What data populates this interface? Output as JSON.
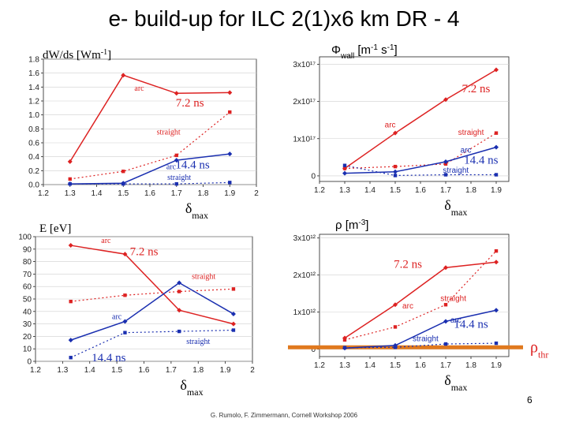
{
  "page": {
    "title": "e- build-up for ILC 2(1)x6 km DR - 4",
    "page_number": "6",
    "footer": "G. Rumolo, F. Zimmermann, Cornell Workshop 2006"
  },
  "colors": {
    "red": "#dd2222",
    "blue": "#1a2fb0",
    "threshold": "#e0791e"
  },
  "chart_data": [
    {
      "id": "power",
      "type": "line",
      "ylabel": "dW/ds [Wm-1]",
      "xlabel": "δmax",
      "xlim": [
        1.2,
        2.0
      ],
      "ylim": [
        0,
        1.8
      ],
      "xticks": [
        1.2,
        1.3,
        1.4,
        1.5,
        1.6,
        1.7,
        1.8,
        1.9,
        2.0
      ],
      "xtick_labels": [
        "1.2",
        "1.3",
        "1.4",
        "1.5",
        "1.6",
        "1.7",
        "1.8",
        "1.9",
        "2"
      ],
      "yticks": [
        0,
        0.2,
        0.4,
        0.6,
        0.8,
        1.0,
        1.2,
        1.4,
        1.6,
        1.8
      ],
      "ytick_labels": [
        "0.0",
        "0.2",
        "0.4",
        "0.6",
        "0.8",
        "1.0",
        "1.2",
        "1.4",
        "1.6",
        "1.8"
      ],
      "series": [
        {
          "name": "7.2 ns arc",
          "color": "red",
          "style": "solid",
          "x": [
            1.3,
            1.5,
            1.7,
            1.9
          ],
          "y": [
            0.33,
            1.57,
            1.31,
            1.32
          ]
        },
        {
          "name": "7.2 ns straight",
          "color": "red",
          "style": "dotted",
          "x": [
            1.3,
            1.5,
            1.7,
            1.9
          ],
          "y": [
            0.08,
            0.19,
            0.42,
            1.04
          ]
        },
        {
          "name": "14.4 ns arc",
          "color": "blue",
          "style": "solid",
          "x": [
            1.3,
            1.5,
            1.7,
            1.9
          ],
          "y": [
            0.01,
            0.02,
            0.35,
            0.44
          ]
        },
        {
          "name": "14.4 ns straight",
          "color": "blue",
          "style": "dotted",
          "x": [
            1.3,
            1.5,
            1.7,
            1.9
          ],
          "y": [
            0.01,
            0.01,
            0.01,
            0.03
          ]
        }
      ],
      "annotations": [
        {
          "text": "arc",
          "color": "red",
          "size": "small",
          "at": [
            1.56,
            1.35
          ]
        },
        {
          "text": "7.2 ns",
          "color": "red",
          "size": "big",
          "at": [
            1.75,
            1.12
          ]
        },
        {
          "text": "straight",
          "color": "red",
          "size": "small",
          "at": [
            1.67,
            0.72
          ]
        },
        {
          "text": "arc",
          "color": "blue",
          "size": "small",
          "at": [
            1.68,
            0.22
          ]
        },
        {
          "text": "14.4 ns",
          "color": "blue",
          "size": "big",
          "at": [
            1.76,
            0.23
          ]
        },
        {
          "text": "straight",
          "color": "blue",
          "size": "small",
          "at": [
            1.71,
            0.07
          ]
        }
      ]
    },
    {
      "id": "flux",
      "type": "line",
      "ylabel": "Φwall [m-1 s-1]",
      "xlabel": "δmax",
      "xlim": [
        1.2,
        1.95
      ],
      "ylim": [
        -0.15,
        3.2
      ],
      "xticks": [
        1.2,
        1.3,
        1.4,
        1.5,
        1.6,
        1.7,
        1.8,
        1.9
      ],
      "xtick_labels": [
        "1.2",
        "1.3",
        "1.4",
        "1.5",
        "1.6",
        "1.7",
        "1.8",
        "1.9"
      ],
      "yticks": [
        0,
        1,
        2,
        3
      ],
      "ytick_labels": [
        "0",
        "1x10¹⁷",
        "2x10¹⁷",
        "3x10¹⁷"
      ],
      "series": [
        {
          "name": "7.2 ns arc",
          "color": "red",
          "style": "solid",
          "x": [
            1.3,
            1.5,
            1.7,
            1.9
          ],
          "y": [
            0.2,
            1.15,
            2.05,
            2.85
          ]
        },
        {
          "name": "7.2 ns straight",
          "color": "red",
          "style": "dotted",
          "x": [
            1.3,
            1.5,
            1.7,
            1.9
          ],
          "y": [
            0.2,
            0.25,
            0.32,
            1.15
          ]
        },
        {
          "name": "14.4 ns arc",
          "color": "blue",
          "style": "solid",
          "x": [
            1.3,
            1.5,
            1.7,
            1.9
          ],
          "y": [
            0.07,
            0.11,
            0.38,
            0.77
          ]
        },
        {
          "name": "14.4 ns straight",
          "color": "blue",
          "style": "dotted",
          "x": [
            1.3,
            1.5,
            1.7,
            1.9
          ],
          "y": [
            0.28,
            0.01,
            0.03,
            0.03
          ]
        }
      ],
      "annotations": [
        {
          "text": "7.2 ns",
          "color": "red",
          "size": "big",
          "at": [
            1.82,
            2.25
          ]
        },
        {
          "text": "arc",
          "color": "red",
          "size": "small",
          "at": [
            1.48,
            1.3
          ]
        },
        {
          "text": "straight",
          "color": "red",
          "size": "small",
          "at": [
            1.8,
            1.1
          ]
        },
        {
          "text": "arc",
          "color": "blue",
          "size": "small",
          "at": [
            1.78,
            0.62
          ]
        },
        {
          "text": "14.4 ns",
          "color": "blue",
          "size": "big",
          "at": [
            1.84,
            0.33
          ]
        },
        {
          "text": "straight",
          "color": "blue",
          "size": "small",
          "at": [
            1.74,
            0.08
          ]
        }
      ]
    },
    {
      "id": "energy",
      "type": "line",
      "ylabel": "E [eV]",
      "xlabel": "δmax",
      "xlim": [
        1.2,
        2.0
      ],
      "ylim": [
        0,
        100
      ],
      "xticks": [
        1.2,
        1.3,
        1.4,
        1.5,
        1.6,
        1.7,
        1.8,
        1.9,
        2.0
      ],
      "xtick_labels": [
        "1.2",
        "1.3",
        "1.4",
        "1.5",
        "1.6",
        "1.7",
        "1.8",
        "1.9",
        "2"
      ],
      "yticks": [
        0,
        10,
        20,
        30,
        40,
        50,
        60,
        70,
        80,
        90,
        100
      ],
      "ytick_labels": [
        "0",
        "10",
        "20",
        "30",
        "40",
        "50",
        "60",
        "70",
        "80",
        "90",
        "100"
      ],
      "series": [
        {
          "name": "7.2 ns arc",
          "color": "red",
          "style": "solid",
          "x": [
            1.33,
            1.53,
            1.73,
            1.93
          ],
          "y": [
            93,
            86,
            41,
            30
          ]
        },
        {
          "name": "7.2 ns straight",
          "color": "red",
          "style": "dotted",
          "x": [
            1.33,
            1.53,
            1.73,
            1.93
          ],
          "y": [
            48,
            53,
            56,
            58
          ]
        },
        {
          "name": "14.4 ns arc",
          "color": "blue",
          "style": "solid",
          "x": [
            1.33,
            1.53,
            1.73,
            1.93
          ],
          "y": [
            17,
            32,
            63,
            38
          ]
        },
        {
          "name": "14.4 ns straight",
          "color": "blue",
          "style": "dotted",
          "x": [
            1.33,
            1.53,
            1.73,
            1.93
          ],
          "y": [
            3,
            23,
            24,
            25
          ]
        }
      ],
      "annotations": [
        {
          "text": "arc",
          "color": "red",
          "size": "small",
          "at": [
            1.46,
            95
          ]
        },
        {
          "text": "7.2 ns",
          "color": "red",
          "size": "big",
          "at": [
            1.6,
            85
          ]
        },
        {
          "text": "straight",
          "color": "red",
          "size": "small",
          "at": [
            1.82,
            66
          ]
        },
        {
          "text": "arc",
          "color": "blue",
          "size": "small",
          "at": [
            1.5,
            34
          ]
        },
        {
          "text": "straight",
          "color": "blue",
          "size": "small",
          "at": [
            1.8,
            14
          ]
        },
        {
          "text": "14.4 ns",
          "color": "blue",
          "size": "big",
          "at": [
            1.47,
            0
          ]
        }
      ]
    },
    {
      "id": "density",
      "type": "line",
      "ylabel": "ρ [m-3]",
      "xlabel": "δmax",
      "xlim": [
        1.2,
        1.95
      ],
      "ylim": [
        -0.2,
        3.1
      ],
      "xticks": [
        1.2,
        1.3,
        1.4,
        1.5,
        1.6,
        1.7,
        1.8,
        1.9
      ],
      "xtick_labels": [
        "1.2",
        "1.3",
        "1.4",
        "1.5",
        "1.6",
        "1.7",
        "1.8",
        "1.9"
      ],
      "yticks": [
        0,
        1,
        2,
        3
      ],
      "ytick_labels": [
        "0",
        "1x10¹²",
        "2x10¹²",
        "3x10¹²"
      ],
      "threshold": {
        "label": "ρthr",
        "y": 0.05
      },
      "series": [
        {
          "name": "7.2 ns arc",
          "color": "red",
          "style": "solid",
          "x": [
            1.3,
            1.5,
            1.7,
            1.9
          ],
          "y": [
            0.3,
            1.2,
            2.2,
            2.35
          ]
        },
        {
          "name": "7.2 ns straight",
          "color": "red",
          "style": "dotted",
          "x": [
            1.3,
            1.5,
            1.7,
            1.9
          ],
          "y": [
            0.25,
            0.6,
            1.2,
            2.65
          ]
        },
        {
          "name": "14.4 ns arc",
          "color": "blue",
          "style": "solid",
          "x": [
            1.3,
            1.5,
            1.7,
            1.9
          ],
          "y": [
            0.03,
            0.1,
            0.75,
            1.05
          ]
        },
        {
          "name": "14.4 ns straight",
          "color": "blue",
          "style": "dotted",
          "x": [
            1.3,
            1.5,
            1.7,
            1.9
          ],
          "y": [
            0.04,
            0.05,
            0.14,
            0.16
          ]
        }
      ],
      "annotations": [
        {
          "text": "7.2 ns",
          "color": "red",
          "size": "big",
          "at": [
            1.55,
            2.2
          ]
        },
        {
          "text": "arc",
          "color": "red",
          "size": "small",
          "at": [
            1.55,
            1.1
          ]
        },
        {
          "text": "straight",
          "color": "red",
          "size": "small",
          "at": [
            1.73,
            1.3
          ]
        },
        {
          "text": "arc",
          "color": "blue",
          "size": "small",
          "at": [
            1.74,
            0.72
          ]
        },
        {
          "text": "14.4 ns",
          "color": "blue",
          "size": "big",
          "at": [
            1.8,
            0.58
          ]
        },
        {
          "text": "straight",
          "color": "blue",
          "size": "small",
          "at": [
            1.62,
            0.22
          ]
        }
      ]
    }
  ]
}
